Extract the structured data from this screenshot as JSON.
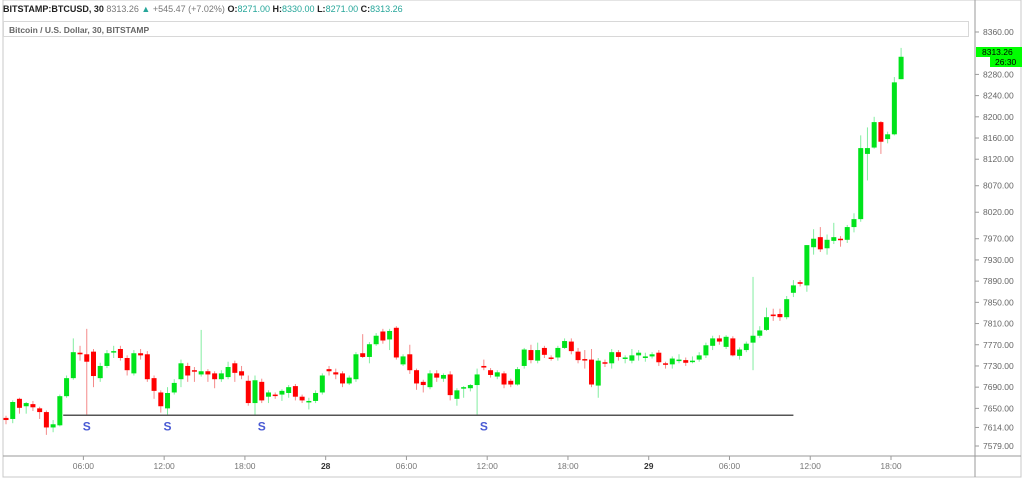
{
  "header": {
    "symbol": "BITSTAMP:BTCUSD, 30",
    "last": "8313.26",
    "arrow": "▲",
    "change": "+545.47 (+7.02%)",
    "o_label": "O:",
    "o": "8271.00",
    "h_label": "H:",
    "h": "8330.00",
    "l_label": "L:",
    "l": "8271.00",
    "c_label": "C:",
    "c": "8313.26"
  },
  "legend": "Bitcoin / U.S. Dollar, 30, BITSTAMP",
  "price_tag": {
    "price": "8313.26",
    "countdown": "26:30"
  },
  "colors": {
    "up": "#00e31b",
    "down": "#ff0000",
    "up_wick": "#82eda0",
    "down_wick": "#f48a8a",
    "tag": "#00ff00",
    "support": "#555555",
    "marker": "#4a5bd4",
    "value_teal": "#26a69a"
  },
  "chart_data": {
    "type": "candlestick",
    "ylim": [
      7560,
      8380
    ],
    "y_ticks": [
      "8360.00",
      "8280.00",
      "8240.00",
      "8200.00",
      "8160.00",
      "8120.00",
      "8070.00",
      "8020.00",
      "7970.00",
      "7930.00",
      "7890.00",
      "7850.00",
      "7810.00",
      "7770.00",
      "7730.00",
      "7690.00",
      "7650.00",
      "7614.00",
      "7579.00"
    ],
    "x_ticks": [
      {
        "label": "06:00",
        "bar": 11
      },
      {
        "label": "12:00",
        "bar": 23
      },
      {
        "label": "18:00",
        "bar": 35
      },
      {
        "label": "28",
        "bar": 47,
        "bold": true
      },
      {
        "label": "06:00",
        "bar": 59
      },
      {
        "label": "12:00",
        "bar": 71
      },
      {
        "label": "18:00",
        "bar": 83
      },
      {
        "label": "29",
        "bar": 95,
        "bold": true
      },
      {
        "label": "06:00",
        "bar": 107
      },
      {
        "label": "12:00",
        "bar": 119
      },
      {
        "label": "18:00",
        "bar": 131
      }
    ],
    "support_line": {
      "price": 7637,
      "from_bar": 8.5,
      "to_bar": 117
    },
    "markers": [
      {
        "label": "S",
        "bar": 12
      },
      {
        "label": "S",
        "bar": 24
      },
      {
        "label": "S",
        "bar": 38
      },
      {
        "label": "S",
        "bar": 71
      }
    ],
    "ohlc": [
      [
        7632,
        7636,
        7620,
        7628
      ],
      [
        7630,
        7665,
        7622,
        7662
      ],
      [
        7668,
        7670,
        7640,
        7651
      ],
      [
        7654,
        7662,
        7640,
        7660
      ],
      [
        7658,
        7664,
        7645,
        7652
      ],
      [
        7650,
        7653,
        7630,
        7643
      ],
      [
        7643,
        7646,
        7600,
        7614
      ],
      [
        7614,
        7628,
        7605,
        7620
      ],
      [
        7618,
        7676,
        7616,
        7673
      ],
      [
        7673,
        7712,
        7670,
        7707
      ],
      [
        7707,
        7782,
        7704,
        7756
      ],
      [
        7755,
        7768,
        7740,
        7752
      ],
      [
        7752,
        7800,
        7637,
        7738
      ],
      [
        7757,
        7762,
        7690,
        7711
      ],
      [
        7707,
        7736,
        7700,
        7730
      ],
      [
        7730,
        7760,
        7726,
        7754
      ],
      [
        7756,
        7768,
        7745,
        7758
      ],
      [
        7762,
        7768,
        7740,
        7745
      ],
      [
        7745,
        7750,
        7712,
        7722
      ],
      [
        7716,
        7760,
        7712,
        7754
      ],
      [
        7754,
        7762,
        7742,
        7750
      ],
      [
        7752,
        7758,
        7700,
        7705
      ],
      [
        7707,
        7712,
        7668,
        7683
      ],
      [
        7680,
        7684,
        7642,
        7654
      ],
      [
        7650,
        7690,
        7637,
        7679
      ],
      [
        7680,
        7705,
        7676,
        7698
      ],
      [
        7705,
        7742,
        7690,
        7735
      ],
      [
        7730,
        7736,
        7700,
        7712
      ],
      [
        7722,
        7728,
        7700,
        7720
      ],
      [
        7714,
        7798,
        7710,
        7720
      ],
      [
        7720,
        7724,
        7700,
        7714
      ],
      [
        7716,
        7720,
        7688,
        7705
      ],
      [
        7705,
        7722,
        7700,
        7716
      ],
      [
        7709,
        7738,
        7705,
        7728
      ],
      [
        7735,
        7740,
        7700,
        7717
      ],
      [
        7720,
        7730,
        7705,
        7712
      ],
      [
        7702,
        7712,
        7655,
        7660
      ],
      [
        7660,
        7712,
        7637,
        7703
      ],
      [
        7700,
        7706,
        7660,
        7665
      ],
      [
        7672,
        7684,
        7660,
        7680
      ],
      [
        7676,
        7680,
        7668,
        7675
      ],
      [
        7676,
        7686,
        7664,
        7683
      ],
      [
        7679,
        7694,
        7670,
        7690
      ],
      [
        7692,
        7696,
        7665,
        7672
      ],
      [
        7672,
        7676,
        7660,
        7665
      ],
      [
        7662,
        7670,
        7648,
        7664
      ],
      [
        7664,
        7684,
        7660,
        7679
      ],
      [
        7680,
        7716,
        7676,
        7712
      ],
      [
        7724,
        7730,
        7712,
        7720
      ],
      [
        7718,
        7725,
        7705,
        7714
      ],
      [
        7716,
        7720,
        7690,
        7697
      ],
      [
        7697,
        7712,
        7694,
        7708
      ],
      [
        7705,
        7756,
        7700,
        7752
      ],
      [
        7754,
        7790,
        7745,
        7747
      ],
      [
        7747,
        7775,
        7735,
        7771
      ],
      [
        7771,
        7792,
        7768,
        7787
      ],
      [
        7795,
        7800,
        7772,
        7778
      ],
      [
        7780,
        7800,
        7760,
        7796
      ],
      [
        7802,
        7805,
        7742,
        7746
      ],
      [
        7733,
        7752,
        7730,
        7748
      ],
      [
        7752,
        7770,
        7715,
        7722
      ],
      [
        7722,
        7725,
        7685,
        7697
      ],
      [
        7700,
        7704,
        7680,
        7694
      ],
      [
        7690,
        7722,
        7686,
        7716
      ],
      [
        7716,
        7722,
        7700,
        7708
      ],
      [
        7706,
        7716,
        7700,
        7713
      ],
      [
        7714,
        7720,
        7665,
        7675
      ],
      [
        7668,
        7688,
        7655,
        7684
      ],
      [
        7688,
        7692,
        7670,
        7690
      ],
      [
        7688,
        7696,
        7682,
        7694
      ],
      [
        7694,
        7725,
        7637,
        7714
      ],
      [
        7730,
        7742,
        7722,
        7727
      ],
      [
        7722,
        7726,
        7708,
        7713
      ],
      [
        7710,
        7722,
        7705,
        7718
      ],
      [
        7716,
        7720,
        7688,
        7695
      ],
      [
        7702,
        7706,
        7690,
        7695
      ],
      [
        7695,
        7728,
        7693,
        7724
      ],
      [
        7730,
        7764,
        7725,
        7761
      ],
      [
        7760,
        7770,
        7735,
        7741
      ],
      [
        7740,
        7774,
        7735,
        7760
      ],
      [
        7764,
        7768,
        7745,
        7751
      ],
      [
        7746,
        7750,
        7740,
        7744
      ],
      [
        7746,
        7768,
        7740,
        7764
      ],
      [
        7764,
        7782,
        7762,
        7777
      ],
      [
        7776,
        7782,
        7752,
        7758
      ],
      [
        7757,
        7764,
        7735,
        7741
      ],
      [
        7743,
        7760,
        7725,
        7742
      ],
      [
        7742,
        7762,
        7690,
        7695
      ],
      [
        7693,
        7745,
        7670,
        7740
      ],
      [
        7737,
        7742,
        7728,
        7736
      ],
      [
        7735,
        7762,
        7725,
        7756
      ],
      [
        7756,
        7760,
        7740,
        7747
      ],
      [
        7745,
        7750,
        7735,
        7746
      ],
      [
        7740,
        7762,
        7735,
        7750
      ],
      [
        7750,
        7760,
        7740,
        7755
      ],
      [
        7745,
        7755,
        7738,
        7748
      ],
      [
        7748,
        7756,
        7744,
        7752
      ],
      [
        7755,
        7760,
        7730,
        7737
      ],
      [
        7735,
        7738,
        7725,
        7733
      ],
      [
        7733,
        7748,
        7725,
        7744
      ],
      [
        7740,
        7752,
        7735,
        7742
      ],
      [
        7741,
        7746,
        7730,
        7736
      ],
      [
        7738,
        7748,
        7735,
        7740
      ],
      [
        7742,
        7756,
        7738,
        7750
      ],
      [
        7750,
        7774,
        7745,
        7769
      ],
      [
        7768,
        7787,
        7760,
        7782
      ],
      [
        7782,
        7788,
        7770,
        7776
      ],
      [
        7766,
        7788,
        7762,
        7785
      ],
      [
        7782,
        7786,
        7748,
        7750
      ],
      [
        7749,
        7765,
        7742,
        7761
      ],
      [
        7760,
        7776,
        7756,
        7772
      ],
      [
        7774,
        7898,
        7722,
        7787
      ],
      [
        7787,
        7805,
        7783,
        7797
      ],
      [
        7798,
        7840,
        7796,
        7822
      ],
      [
        7827,
        7838,
        7815,
        7824
      ],
      [
        7828,
        7838,
        7815,
        7822
      ],
      [
        7822,
        7862,
        7818,
        7856
      ],
      [
        7868,
        7892,
        7860,
        7882
      ],
      [
        7888,
        7892,
        7880,
        7885
      ],
      [
        7882,
        7958,
        7870,
        7958
      ],
      [
        7954,
        7988,
        7940,
        7970
      ],
      [
        7973,
        7992,
        7945,
        7950
      ],
      [
        7952,
        7978,
        7940,
        7968
      ],
      [
        7966,
        8000,
        7960,
        7973
      ],
      [
        7970,
        7975,
        7955,
        7968
      ],
      [
        7968,
        7996,
        7962,
        7992
      ],
      [
        7992,
        8018,
        7982,
        8007
      ],
      [
        8007,
        8165,
        8002,
        8141
      ],
      [
        8130,
        8180,
        8080,
        8141
      ],
      [
        8142,
        8200,
        8140,
        8190
      ],
      [
        8190,
        8192,
        8130,
        8153
      ],
      [
        8158,
        8172,
        8150,
        8167
      ],
      [
        8167,
        8275,
        8165,
        8265
      ],
      [
        8271,
        8330,
        8271,
        8313.26
      ]
    ]
  }
}
